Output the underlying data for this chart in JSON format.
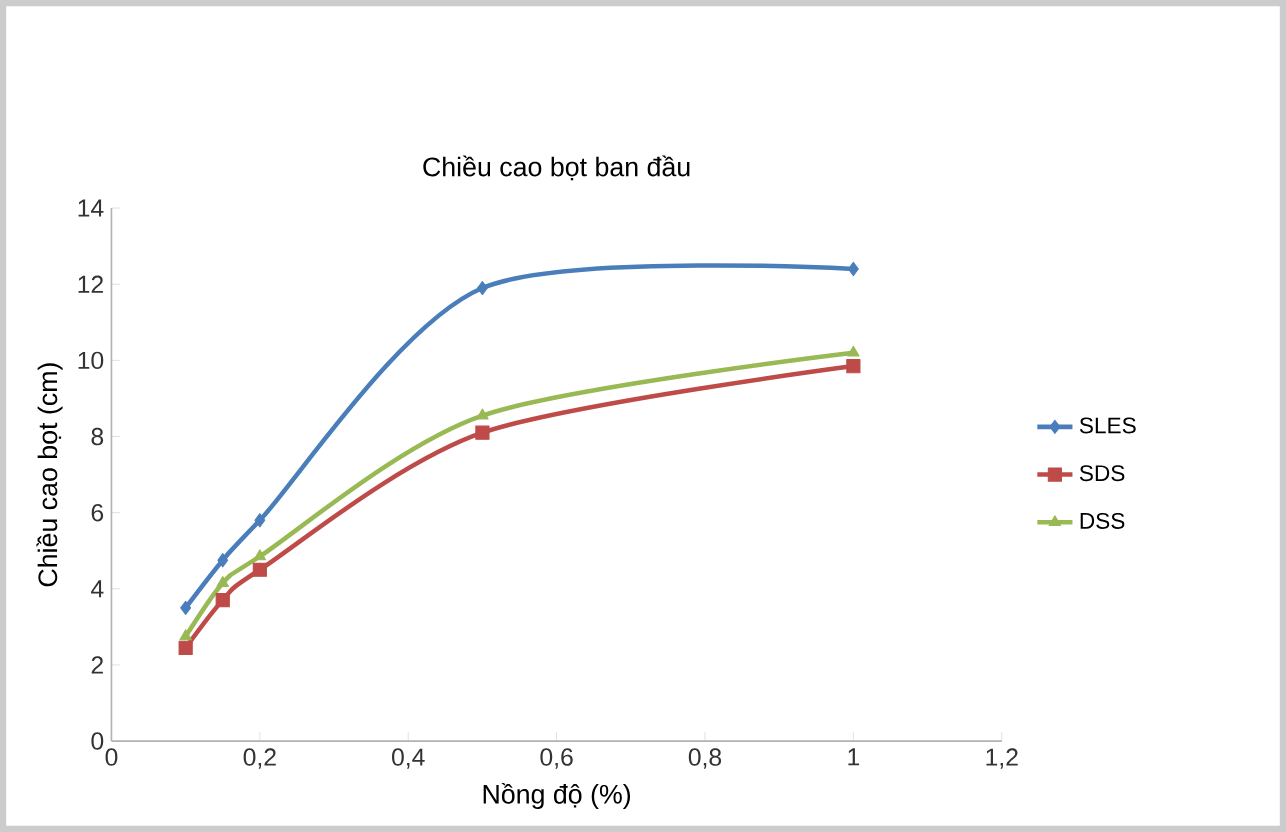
{
  "chart_data": {
    "type": "line",
    "title": "Chiều cao bọt ban đầu",
    "xlabel": "Nồng độ (%)",
    "ylabel": "Chiều cao bọt (cm)",
    "x": [
      0.1,
      0.15,
      0.2,
      0.5,
      1
    ],
    "xlim": [
      0,
      1.2
    ],
    "xticks": [
      {
        "value": 0,
        "label": "0"
      },
      {
        "value": 0.2,
        "label": "0,2"
      },
      {
        "value": 0.4,
        "label": "0,4"
      },
      {
        "value": 0.6,
        "label": "0,6"
      },
      {
        "value": 0.8,
        "label": "0,8"
      },
      {
        "value": 1,
        "label": "1"
      },
      {
        "value": 1.2,
        "label": "1,2"
      }
    ],
    "ylim": [
      0,
      14
    ],
    "yticks": [
      0,
      2,
      4,
      6,
      8,
      10,
      12,
      14
    ],
    "series": [
      {
        "name": "SLES",
        "color": "#4a7ebb",
        "marker": "diamond",
        "values": [
          3.5,
          4.75,
          5.8,
          11.9,
          12.4
        ]
      },
      {
        "name": "SDS",
        "color": "#be4b48",
        "marker": "square",
        "values": [
          2.45,
          3.7,
          4.5,
          8.1,
          9.85
        ]
      },
      {
        "name": "DSS",
        "color": "#98b954",
        "marker": "triangle",
        "values": [
          2.75,
          4.15,
          4.85,
          8.55,
          10.2
        ]
      }
    ],
    "legend": "right",
    "grid": false
  }
}
